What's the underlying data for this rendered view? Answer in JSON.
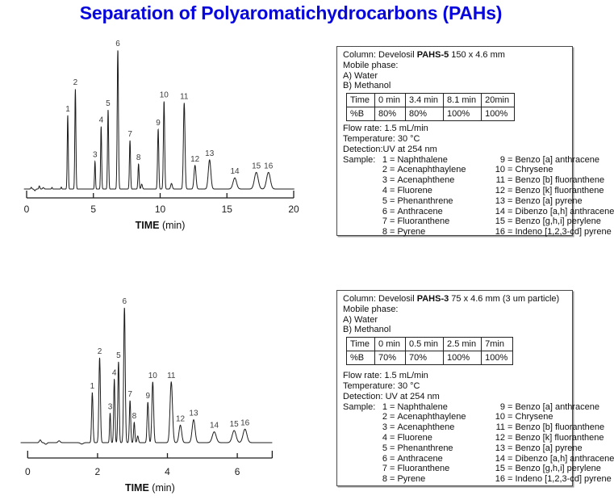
{
  "page": {
    "title": "Separation of Polyaromatichydrocarbons (PAHs)",
    "title_color": "#0707dd"
  },
  "samples": {
    "label": "Sample:",
    "left": [
      {
        "n": "1",
        "name": "Naphthalene"
      },
      {
        "n": "2",
        "name": "Acenaphthaylene"
      },
      {
        "n": "3",
        "name": "Acenaphthene"
      },
      {
        "n": "4",
        "name": "Fluorene"
      },
      {
        "n": "5",
        "name": "Phenanthrene"
      },
      {
        "n": "6",
        "name": "Anthracene"
      },
      {
        "n": "7",
        "name": "Fluoranthene"
      },
      {
        "n": "8",
        "name": "Pyrene"
      }
    ],
    "right": [
      {
        "n": "9",
        "name": "Benzo [a] anthracene"
      },
      {
        "n": "10",
        "name": "Chrysene"
      },
      {
        "n": "11",
        "name": "Benzo [b] fluoranthene"
      },
      {
        "n": "12",
        "name": "Benzo [k] fluoranthene"
      },
      {
        "n": "13",
        "name": "Benzo [a] pyrene"
      },
      {
        "n": "14",
        "name": "Dibenzo [a,h] anthracene"
      },
      {
        "n": "15",
        "name": "Benzo [g,h,i] perylene"
      },
      {
        "n": "16",
        "name": "Indeno [1,2,3-cd] pyrene"
      }
    ]
  },
  "info_boxes": [
    {
      "column_prefix": "Column: Develosil ",
      "column_bold": "PAHS-5",
      "column_suffix": " 150 x 4.6 mm",
      "mobile_phase_label": "Mobile phase:",
      "phase_a": "A) Water",
      "phase_b": "B) Methanol",
      "gradient": {
        "header": [
          "Time",
          "0 min",
          "3.4 min",
          "8.1 min",
          "20min"
        ],
        "values": [
          "%B",
          "80%",
          "80%",
          "100%",
          "100%"
        ]
      },
      "flow_rate": "Flow rate: 1.5 mL/min",
      "temperature": "Temperature: 30 °C",
      "detection": "Detection:UV at 254 nm"
    },
    {
      "column_prefix": "Column: Develosil ",
      "column_bold": "PAHS-3",
      "column_suffix": " 75 x 4.6 mm (3 um particle)",
      "mobile_phase_label": "Mobile phase:",
      "phase_a": "A) Water",
      "phase_b": "B) Methanol",
      "gradient": {
        "header": [
          "Time",
          "0 min",
          "0.5 min",
          "2.5 min",
          "7min"
        ],
        "values": [
          "%B",
          "70%",
          "70%",
          "100%",
          "100%"
        ]
      },
      "flow_rate": "Flow rate: 1.5 mL/min",
      "temperature": "Temperature: 30 °C",
      "detection": "Detection: UV at 254 nm"
    }
  ],
  "chart_data": [
    {
      "type": "line",
      "kind": "chromatogram",
      "column": "Develosil PAHS-5 150 x 4.6 mm",
      "xlabel_bold": "TIME",
      "xlabel_rest": "(min)",
      "x_axis": {
        "min": 0,
        "axis_end": 20,
        "ticks": [
          0,
          5,
          10,
          15,
          20
        ],
        "trace_start": -0.2,
        "trace_end": 20.05,
        "unit": "min"
      },
      "y_axis": {
        "label": "",
        "relative_max": 1.0,
        "grid": false
      },
      "peaks": [
        {
          "label": "1",
          "t": 3.08,
          "h": 0.53,
          "w": 0.038
        },
        {
          "label": "2",
          "t": 3.65,
          "h": 0.72,
          "w": 0.04
        },
        {
          "label": "3",
          "t": 5.12,
          "h": 0.2,
          "w": 0.035
        },
        {
          "label": "4",
          "t": 5.58,
          "h": 0.45,
          "w": 0.038
        },
        {
          "label": "5",
          "t": 6.1,
          "h": 0.57,
          "w": 0.04
        },
        {
          "label": "6",
          "t": 6.83,
          "h": 1.0,
          "w": 0.045
        },
        {
          "label": "7",
          "t": 7.74,
          "h": 0.35,
          "w": 0.042
        },
        {
          "label": "8",
          "t": 8.38,
          "h": 0.18,
          "w": 0.042
        },
        {
          "label": "9",
          "t": 9.85,
          "h": 0.43,
          "w": 0.045
        },
        {
          "label": "10",
          "t": 10.29,
          "h": 0.63,
          "w": 0.048
        },
        {
          "label": "11",
          "t": 11.8,
          "h": 0.62,
          "w": 0.06
        },
        {
          "label": "12",
          "t": 12.61,
          "h": 0.17,
          "w": 0.075
        },
        {
          "label": "13",
          "t": 13.7,
          "h": 0.21,
          "w": 0.095
        },
        {
          "label": "14",
          "t": 15.59,
          "h": 0.08,
          "w": 0.13
        },
        {
          "label": "15",
          "t": 17.2,
          "h": 0.12,
          "w": 0.14
        },
        {
          "label": "16",
          "t": 18.11,
          "h": 0.12,
          "w": 0.14
        }
      ],
      "noise": [
        {
          "t": 0.35,
          "h": 0.012,
          "w": 0.04
        },
        {
          "t": 0.62,
          "h": -0.012,
          "w": 0.05
        },
        {
          "t": 0.95,
          "h": 0.022,
          "w": 0.04
        },
        {
          "t": 1.25,
          "h": 0.01,
          "w": 0.05
        },
        {
          "t": 1.9,
          "h": 0.012,
          "w": 0.03
        },
        {
          "t": 2.6,
          "h": 0.014,
          "w": 0.03
        },
        {
          "t": 8.62,
          "h": 0.035,
          "w": 0.05
        },
        {
          "t": 10.85,
          "h": 0.04,
          "w": 0.06
        }
      ]
    },
    {
      "type": "line",
      "kind": "chromatogram",
      "column": "Develosil PAHS-3 75 x 4.6 mm (3 um particle)",
      "xlabel_bold": "TIME",
      "xlabel_rest": "(min)",
      "x_axis": {
        "min": 0,
        "axis_end": 7,
        "ticks": [
          0,
          2,
          4,
          6
        ],
        "trace_start": -0.2,
        "trace_end": 7.0,
        "unit": "min"
      },
      "y_axis": {
        "label": "",
        "relative_max": 1.0,
        "grid": false
      },
      "peaks": [
        {
          "label": "1",
          "t": 1.85,
          "h": 0.37,
          "w": 0.02
        },
        {
          "label": "2",
          "t": 2.06,
          "h": 0.63,
          "w": 0.022
        },
        {
          "label": "3",
          "t": 2.36,
          "h": 0.22,
          "w": 0.016
        },
        {
          "label": "4",
          "t": 2.48,
          "h": 0.47,
          "w": 0.018
        },
        {
          "label": "5",
          "t": 2.6,
          "h": 0.6,
          "w": 0.019
        },
        {
          "label": "6",
          "t": 2.77,
          "h": 1.0,
          "w": 0.022
        },
        {
          "label": "7",
          "t": 2.93,
          "h": 0.31,
          "w": 0.019
        },
        {
          "label": "8",
          "t": 3.05,
          "h": 0.15,
          "w": 0.018
        },
        {
          "label": "9",
          "t": 3.44,
          "h": 0.3,
          "w": 0.022
        },
        {
          "label": "10",
          "t": 3.58,
          "h": 0.45,
          "w": 0.025
        },
        {
          "label": "11",
          "t": 4.11,
          "h": 0.45,
          "w": 0.035
        },
        {
          "label": "12",
          "t": 4.37,
          "h": 0.13,
          "w": 0.038
        },
        {
          "label": "13",
          "t": 4.75,
          "h": 0.17,
          "w": 0.042
        },
        {
          "label": "14",
          "t": 5.34,
          "h": 0.08,
          "w": 0.055
        },
        {
          "label": "15",
          "t": 5.91,
          "h": 0.09,
          "w": 0.055
        },
        {
          "label": "16",
          "t": 6.22,
          "h": 0.1,
          "w": 0.055
        }
      ],
      "noise": [
        {
          "t": 0.36,
          "h": 0.02,
          "w": 0.025
        },
        {
          "t": 0.52,
          "h": -0.012,
          "w": 0.03
        },
        {
          "t": 0.9,
          "h": 0.014,
          "w": 0.03
        },
        {
          "t": 1.55,
          "h": -0.01,
          "w": 0.04
        },
        {
          "t": 3.15,
          "h": 0.05,
          "w": 0.02
        }
      ]
    }
  ]
}
